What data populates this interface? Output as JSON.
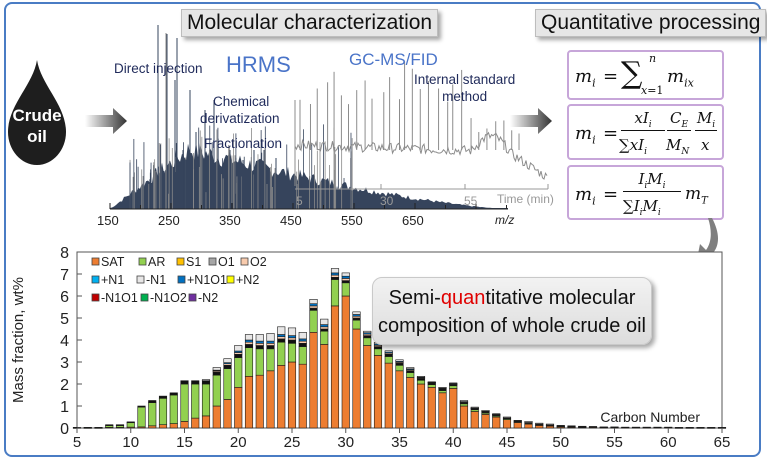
{
  "titles": {
    "molecular": "Molecular characterization",
    "quantitative": "Quantitative processing"
  },
  "crude_oil": {
    "line1": "Crude",
    "line2": "oil"
  },
  "spectrum_labels": {
    "direct_injection": "Direct injection",
    "hrms": "HRMS",
    "chemical": "Chemical",
    "derivatization": "derivatization",
    "fractionation": "Fractionation",
    "gcms": "GC-MS/FID",
    "internal_standard_1": "Internal standard",
    "internal_standard_2": "method"
  },
  "ms_axis": {
    "ticks": [
      "150",
      "250",
      "350",
      "450",
      "550",
      "650"
    ],
    "label": "m/z"
  },
  "gc_axis": {
    "ticks": [
      "5",
      "30",
      "55"
    ],
    "label": "Time (min)"
  },
  "equations": [
    {
      "name": "sum-equation",
      "lhs": "m",
      "lhs_sub": "i",
      "text": "= Σ_{x=1}^{n} m_ix"
    },
    {
      "name": "internal-standard-equation",
      "lhs": "m",
      "lhs_sub": "i",
      "text": "= (xI_i / Σ xI_i)(C_E / M_N)(M_i / x)"
    },
    {
      "name": "total-mass-equation",
      "lhs": "m",
      "lhs_sub": "i",
      "text": "= (I_i M_i / Σ I_i M_i) m_T"
    }
  ],
  "semi_box": {
    "prefix": "Semi-",
    "highlight": "quan",
    "rest_line1": "titative molecular",
    "line2": "composition of whole crude oil"
  },
  "chart_data": {
    "type": "bar",
    "stacked": true,
    "title": "",
    "xlabel": "Carbon Number",
    "ylabel": "Mass fraction, wt%",
    "ylim": [
      0,
      8
    ],
    "xlim": [
      5,
      65
    ],
    "yticks": [
      "0",
      "1",
      "2",
      "3",
      "4",
      "5",
      "6",
      "7",
      "8"
    ],
    "xticks": [
      "5",
      "10",
      "15",
      "20",
      "25",
      "30",
      "35",
      "40",
      "45",
      "50",
      "55",
      "60",
      "65"
    ],
    "legend_position": "top-left",
    "legend": [
      {
        "name": "SAT",
        "color": "#ed7d31"
      },
      {
        "name": "AR",
        "color": "#92d050"
      },
      {
        "name": "S1",
        "color": "#ffc000"
      },
      {
        "name": "O1",
        "color": "#a6a6a6"
      },
      {
        "name": "O2",
        "color": "#f8cbad"
      },
      {
        "name": "+N1",
        "color": "#00b0f0"
      },
      {
        "name": "-N1",
        "color": "#e7e6e6"
      },
      {
        "name": "+N1O1",
        "color": "#0070c0"
      },
      {
        "name": "+N2",
        "color": "#ffff00"
      },
      {
        "name": "-N1O1",
        "color": "#c00000"
      },
      {
        "name": "-N1O2",
        "color": "#00b050"
      },
      {
        "name": "-N2",
        "color": "#7030a0"
      }
    ],
    "carbon_numbers": [
      5,
      6,
      7,
      8,
      9,
      10,
      11,
      12,
      13,
      14,
      15,
      16,
      17,
      18,
      19,
      20,
      21,
      22,
      23,
      24,
      25,
      26,
      27,
      28,
      29,
      30,
      31,
      32,
      33,
      34,
      35,
      36,
      37,
      38,
      39,
      40,
      41,
      42,
      43,
      44,
      45,
      46,
      47,
      48,
      49,
      50,
      51,
      52,
      53,
      54,
      55,
      56,
      57,
      58,
      59,
      60,
      61,
      62,
      63,
      64,
      65
    ],
    "series": [
      {
        "name": "SAT",
        "values": [
          0.01,
          0.01,
          0.01,
          0.03,
          0.03,
          0.04,
          0.05,
          0.1,
          0.15,
          0.2,
          0.3,
          0.45,
          0.55,
          1.0,
          1.3,
          1.85,
          2.35,
          2.4,
          2.6,
          2.85,
          3.0,
          2.9,
          4.35,
          3.8,
          5.55,
          6.0,
          4.5,
          3.75,
          3.3,
          2.95,
          2.6,
          2.3,
          2.0,
          1.85,
          1.6,
          1.8,
          1.0,
          0.75,
          0.62,
          0.5,
          0.38,
          0.25,
          0.18,
          0.12,
          0.09,
          0.06,
          0.04,
          0.03,
          0.03,
          0.02,
          0.02,
          0.02,
          0.02,
          0.02,
          0.02,
          0.02,
          0.01,
          0.01,
          0.01,
          0.01,
          0.01
        ]
      },
      {
        "name": "AR",
        "values": [
          0.01,
          0.01,
          0.01,
          0.08,
          0.08,
          0.2,
          0.9,
          1.05,
          1.2,
          1.3,
          1.7,
          1.55,
          1.45,
          1.4,
          1.4,
          1.35,
          1.3,
          1.2,
          1.0,
          1.05,
          0.85,
          0.8,
          1.0,
          0.6,
          1.2,
          0.6,
          0.4,
          0.35,
          0.3,
          0.3,
          0.25,
          0.22,
          0.17,
          0.12,
          0.1,
          0.12,
          0.1,
          0.08,
          0.06,
          0.05,
          0.04,
          0.03,
          0.03,
          0.02,
          0.02,
          0.01,
          0.01,
          0.01,
          0.0,
          0.0,
          0.0,
          0.0,
          0.0,
          0.0,
          0.0,
          0.0,
          0.0,
          0.0,
          0.0,
          0.0,
          0.0
        ]
      },
      {
        "name": "-N1O1",
        "values": [
          0.01,
          0.01,
          0.01,
          0.04,
          0.04,
          0.04,
          0.05,
          0.1,
          0.1,
          0.1,
          0.15,
          0.15,
          0.15,
          0.15,
          0.15,
          0.15,
          0.15,
          0.15,
          0.15,
          0.15,
          0.15,
          0.15,
          0.1,
          0.1,
          0.1,
          0.1,
          0.1,
          0.1,
          0.1,
          0.1,
          0.1,
          0.09,
          0.08,
          0.07,
          0.07,
          0.06,
          0.06,
          0.06,
          0.06,
          0.05,
          0.04,
          0.04,
          0.04,
          0.04,
          0.03,
          0.03,
          0.03,
          0.03,
          0.03,
          0.02,
          0.02,
          0.02,
          0.02,
          0.02,
          0.02,
          0.02,
          0.02,
          0.02,
          0.02,
          0.02,
          0.02
        ]
      },
      {
        "name": "O2",
        "values": [
          0,
          0,
          0,
          0,
          0,
          0,
          0,
          0,
          0,
          0,
          0,
          0,
          0,
          0.05,
          0.07,
          0.08,
          0.1,
          0.1,
          0.1,
          0.1,
          0.1,
          0.1,
          0.1,
          0.1,
          0.1,
          0.1,
          0.08,
          0.07,
          0.06,
          0.05,
          0.04,
          0.04,
          0.03,
          0.02,
          0.02,
          0.02,
          0.02,
          0.01,
          0.01,
          0.01,
          0,
          0,
          0,
          0,
          0,
          0,
          0,
          0,
          0,
          0,
          0,
          0,
          0,
          0,
          0,
          0,
          0,
          0,
          0,
          0,
          0
        ]
      },
      {
        "name": "+N1O1",
        "values": [
          0,
          0,
          0,
          0,
          0,
          0,
          0,
          0,
          0,
          0,
          0,
          0,
          0,
          0.03,
          0.05,
          0.07,
          0.1,
          0.1,
          0.1,
          0.1,
          0.1,
          0.1,
          0.1,
          0.1,
          0.1,
          0.1,
          0.08,
          0.06,
          0.06,
          0.05,
          0.04,
          0.04,
          0.03,
          0.02,
          0.02,
          0.02,
          0.02,
          0.01,
          0.01,
          0.01,
          0,
          0,
          0,
          0,
          0,
          0,
          0,
          0,
          0,
          0,
          0,
          0,
          0,
          0,
          0,
          0,
          0,
          0,
          0,
          0,
          0
        ]
      },
      {
        "name": "-N1",
        "values": [
          0,
          0,
          0,
          0,
          0,
          0,
          0,
          0,
          0,
          0,
          0,
          0.0,
          0.05,
          0.12,
          0.18,
          0.25,
          0.25,
          0.3,
          0.35,
          0.35,
          0.35,
          0.3,
          0.2,
          0.25,
          0.2,
          0.15,
          0.12,
          0.07,
          0.07,
          0.06,
          0.07,
          0.06,
          0.04,
          0.02,
          0.04,
          0.03,
          0.05,
          0.04,
          0.04,
          0.03,
          0.04,
          0.03,
          0.05,
          0.04,
          0.04,
          0.02,
          0.02,
          0.01,
          0.01,
          0.01,
          0.01,
          0.0,
          0.0,
          0.0,
          0.0,
          0.0,
          0.0,
          0.0,
          0.0,
          0.0,
          0.0
        ]
      }
    ]
  }
}
